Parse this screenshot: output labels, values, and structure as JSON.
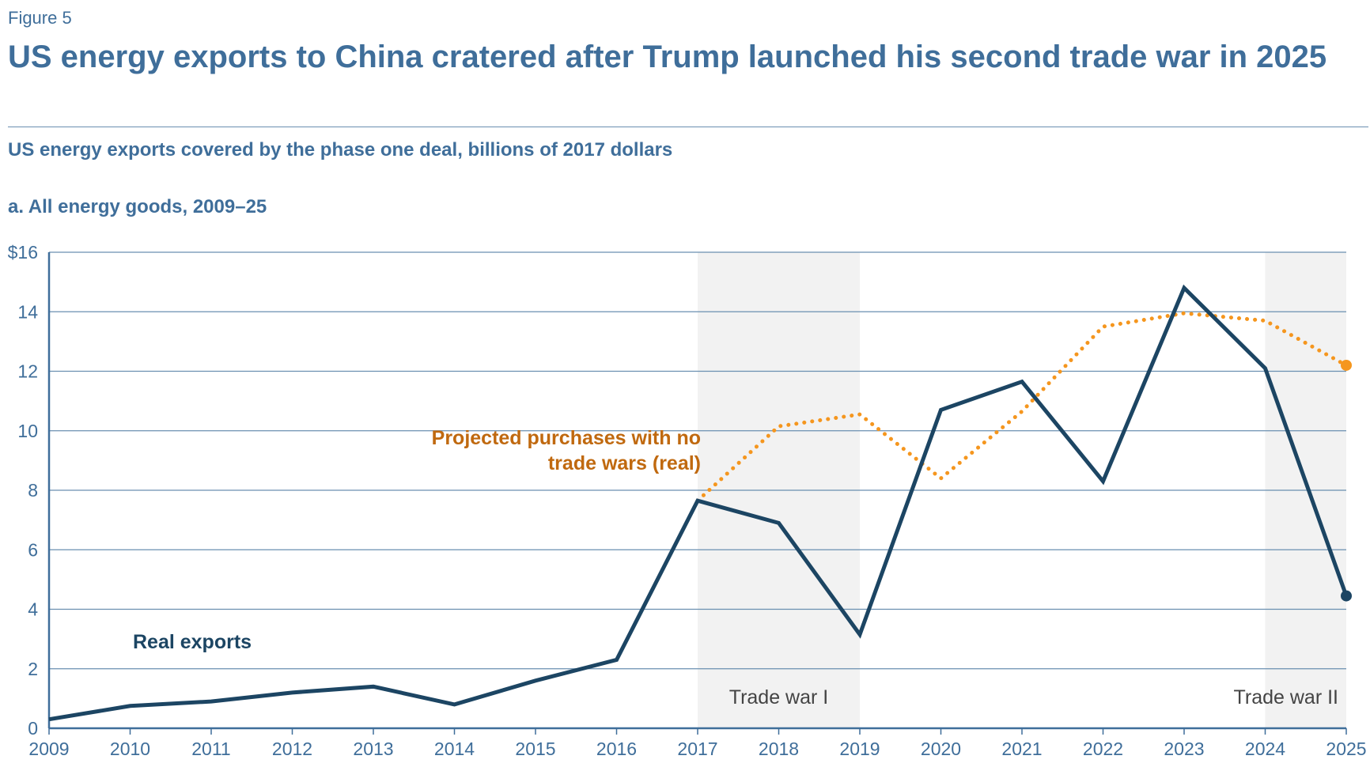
{
  "figure_label": "Figure 5",
  "title": "US energy exports to China cratered after Trump launched his second trade war in 2025",
  "subtitle": "US energy exports covered by the phase one deal, billions of 2017 dollars",
  "panel_title": "a. All energy goods, 2009–25",
  "colors": {
    "real": "#1c4563",
    "projected": "#f5961e",
    "projected_label": "#c0690f",
    "grid": "#6a8fb0",
    "axis": "#3f6e9a",
    "shade": "#f2f2f2"
  },
  "chart_data": {
    "type": "line",
    "x": [
      2009,
      2010,
      2011,
      2012,
      2013,
      2014,
      2015,
      2016,
      2017,
      2018,
      2019,
      2020,
      2021,
      2022,
      2023,
      2024,
      2025
    ],
    "x_tick_labels": [
      "2009",
      "2010",
      "2011",
      "2012",
      "2013",
      "2014",
      "2015",
      "2016",
      "2017",
      "2018",
      "2019",
      "2020",
      "2021",
      "2022",
      "2023",
      "2024",
      "2025"
    ],
    "ylim": [
      0,
      16
    ],
    "y_ticks": [
      0,
      2,
      4,
      6,
      8,
      10,
      12,
      14,
      16
    ],
    "y_tick_labels": [
      "0",
      "2",
      "4",
      "6",
      "8",
      "10",
      "12",
      "14",
      "$16"
    ],
    "grid": true,
    "series": [
      {
        "name": "Real exports",
        "style": "solid",
        "x": [
          2009,
          2010,
          2011,
          2012,
          2013,
          2014,
          2015,
          2016,
          2017,
          2018,
          2019,
          2020,
          2021,
          2022,
          2023,
          2024,
          2025
        ],
        "values": [
          0.3,
          0.75,
          0.9,
          1.2,
          1.4,
          0.8,
          1.6,
          2.3,
          7.65,
          6.9,
          3.15,
          10.7,
          11.65,
          8.3,
          14.8,
          12.1,
          4.45
        ]
      },
      {
        "name": "Projected purchases with no trade wars (real)",
        "style": "dotted",
        "x": [
          2017,
          2018,
          2019,
          2020,
          2021,
          2022,
          2023,
          2024,
          2025
        ],
        "values": [
          7.65,
          10.15,
          10.55,
          8.4,
          10.65,
          13.5,
          13.95,
          13.7,
          12.2
        ]
      }
    ],
    "shaded_regions": [
      {
        "label": "Trade war I",
        "x_start": 2017,
        "x_end": 2019
      },
      {
        "label": "Trade war II",
        "x_start": 2024,
        "x_end": 2025
      }
    ],
    "series_labels": {
      "real": "Real exports",
      "projected_line1": "Projected purchases with no",
      "projected_line2": "trade wars (real)"
    }
  }
}
